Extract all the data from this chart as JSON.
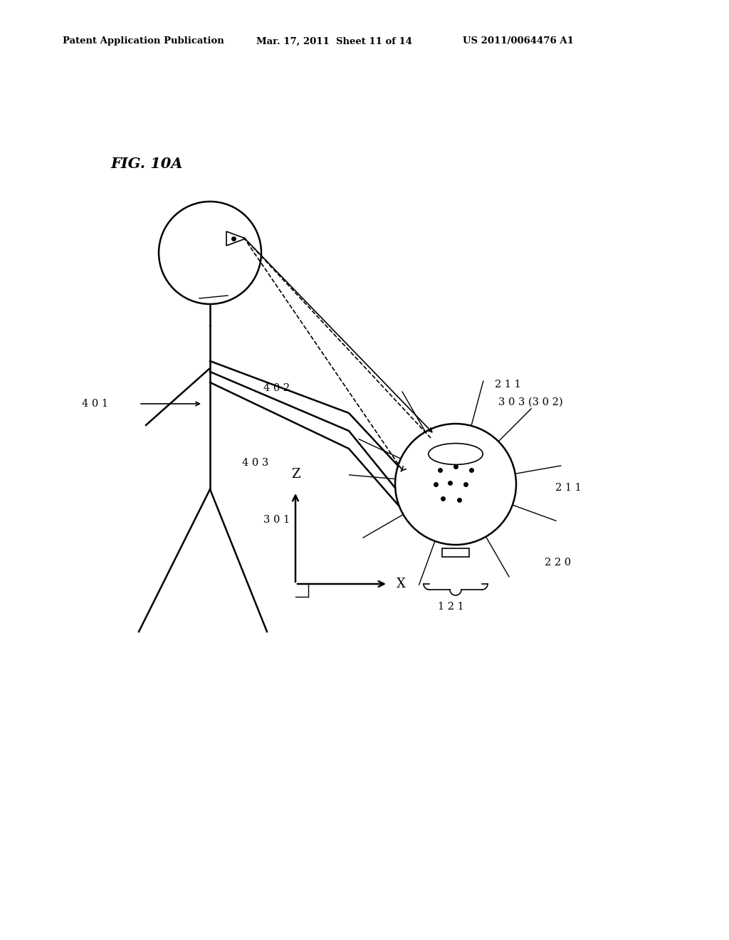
{
  "title": "FIG. 10A",
  "header_left": "Patent Application Publication",
  "header_mid": "Mar. 17, 2011  Sheet 11 of 14",
  "header_right": "US 2011/0064476 A1",
  "background_color": "#ffffff",
  "line_color": "#000000",
  "label_401": "4 0 1",
  "label_402": "4 0 2",
  "label_403": "4 0 3",
  "label_301": "3 0 1",
  "label_121": "1 2 1",
  "label_220": "2 2 0",
  "label_211a": "2 1 1",
  "label_211b": "2 1 1",
  "label_303": "3 0 3 (3 0 2)"
}
